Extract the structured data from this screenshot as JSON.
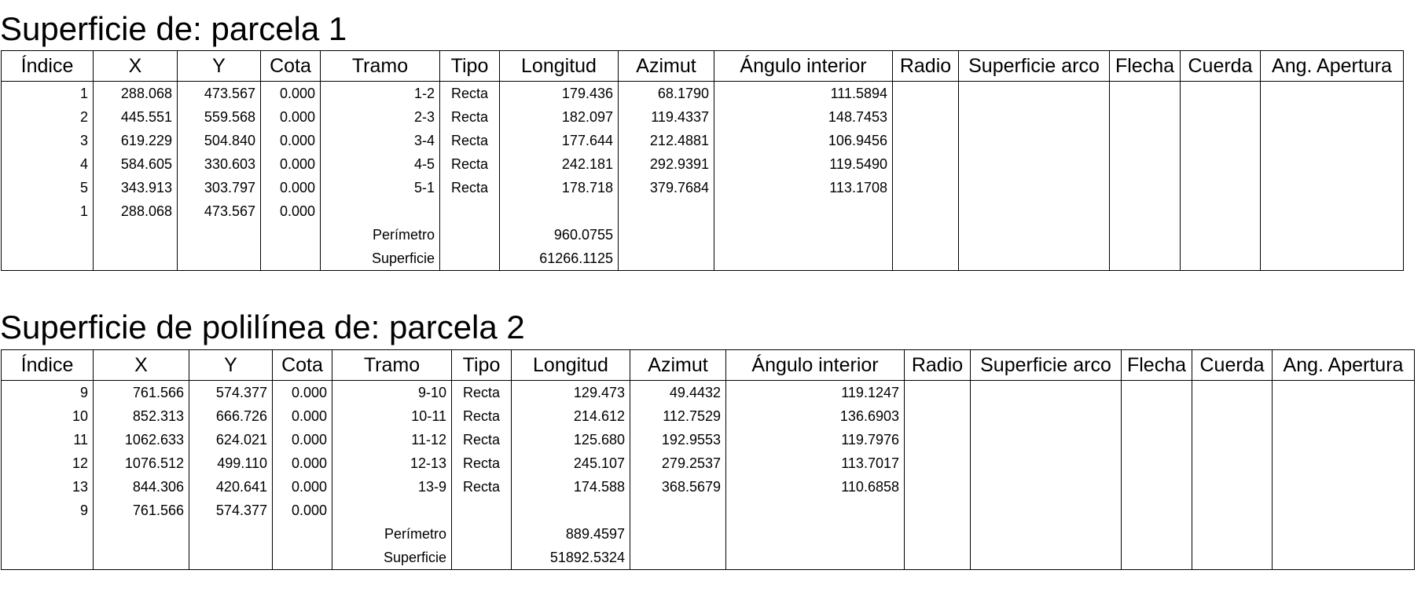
{
  "tables": [
    {
      "title": "Superficie de: parcela 1",
      "headers": [
        "Índice",
        "X",
        "Y",
        "Cota",
        "Tramo",
        "Tipo",
        "Longitud",
        "Azimut",
        "Ángulo interior",
        "Radio",
        "Superficie arco",
        "Flecha",
        "Cuerda",
        "Ang. Apertura"
      ],
      "rows": [
        [
          "1",
          "288.068",
          "473.567",
          "0.000",
          "1-2",
          "Recta",
          "179.436",
          "68.1790",
          "111.5894",
          "",
          "",
          "",
          "",
          ""
        ],
        [
          "2",
          "445.551",
          "559.568",
          "0.000",
          "2-3",
          "Recta",
          "182.097",
          "119.4337",
          "148.7453",
          "",
          "",
          "",
          "",
          ""
        ],
        [
          "3",
          "619.229",
          "504.840",
          "0.000",
          "3-4",
          "Recta",
          "177.644",
          "212.4881",
          "106.9456",
          "",
          "",
          "",
          "",
          ""
        ],
        [
          "4",
          "584.605",
          "330.603",
          "0.000",
          "4-5",
          "Recta",
          "242.181",
          "292.9391",
          "119.5490",
          "",
          "",
          "",
          "",
          ""
        ],
        [
          "5",
          "343.913",
          "303.797",
          "0.000",
          "5-1",
          "Recta",
          "178.718",
          "379.7684",
          "113.1708",
          "",
          "",
          "",
          "",
          ""
        ],
        [
          "1",
          "288.068",
          "473.567",
          "0.000",
          "",
          "",
          "",
          "",
          "",
          "",
          "",
          "",
          "",
          ""
        ],
        [
          "",
          "",
          "",
          "",
          "Perímetro",
          "",
          "960.0755",
          "",
          "",
          "",
          "",
          "",
          "",
          ""
        ],
        [
          "",
          "",
          "",
          "",
          "Superficie",
          "",
          "61266.1125",
          "",
          "",
          "",
          "",
          "",
          "",
          ""
        ]
      ]
    },
    {
      "title": "Superficie de polilínea de: parcela 2",
      "headers": [
        "Índice",
        "X",
        "Y",
        "Cota",
        "Tramo",
        "Tipo",
        "Longitud",
        "Azimut",
        "Ángulo interior",
        "Radio",
        "Superficie arco",
        "Flecha",
        "Cuerda",
        "Ang. Apertura"
      ],
      "rows": [
        [
          "9",
          "761.566",
          "574.377",
          "0.000",
          "9-10",
          "Recta",
          "129.473",
          "49.4432",
          "119.1247",
          "",
          "",
          "",
          "",
          ""
        ],
        [
          "10",
          "852.313",
          "666.726",
          "0.000",
          "10-11",
          "Recta",
          "214.612",
          "112.7529",
          "136.6903",
          "",
          "",
          "",
          "",
          ""
        ],
        [
          "11",
          "1062.633",
          "624.021",
          "0.000",
          "11-12",
          "Recta",
          "125.680",
          "192.9553",
          "119.7976",
          "",
          "",
          "",
          "",
          ""
        ],
        [
          "12",
          "1076.512",
          "499.110",
          "0.000",
          "12-13",
          "Recta",
          "245.107",
          "279.2537",
          "113.7017",
          "",
          "",
          "",
          "",
          ""
        ],
        [
          "13",
          "844.306",
          "420.641",
          "0.000",
          "13-9",
          "Recta",
          "174.588",
          "368.5679",
          "110.6858",
          "",
          "",
          "",
          "",
          ""
        ],
        [
          "9",
          "761.566",
          "574.377",
          "0.000",
          "",
          "",
          "",
          "",
          "",
          "",
          "",
          "",
          "",
          ""
        ],
        [
          "",
          "",
          "",
          "",
          "Perímetro",
          "",
          "889.4597",
          "",
          "",
          "",
          "",
          "",
          "",
          ""
        ],
        [
          "",
          "",
          "",
          "",
          "Superficie",
          "",
          "51892.5324",
          "",
          "",
          "",
          "",
          "",
          "",
          ""
        ]
      ]
    }
  ]
}
